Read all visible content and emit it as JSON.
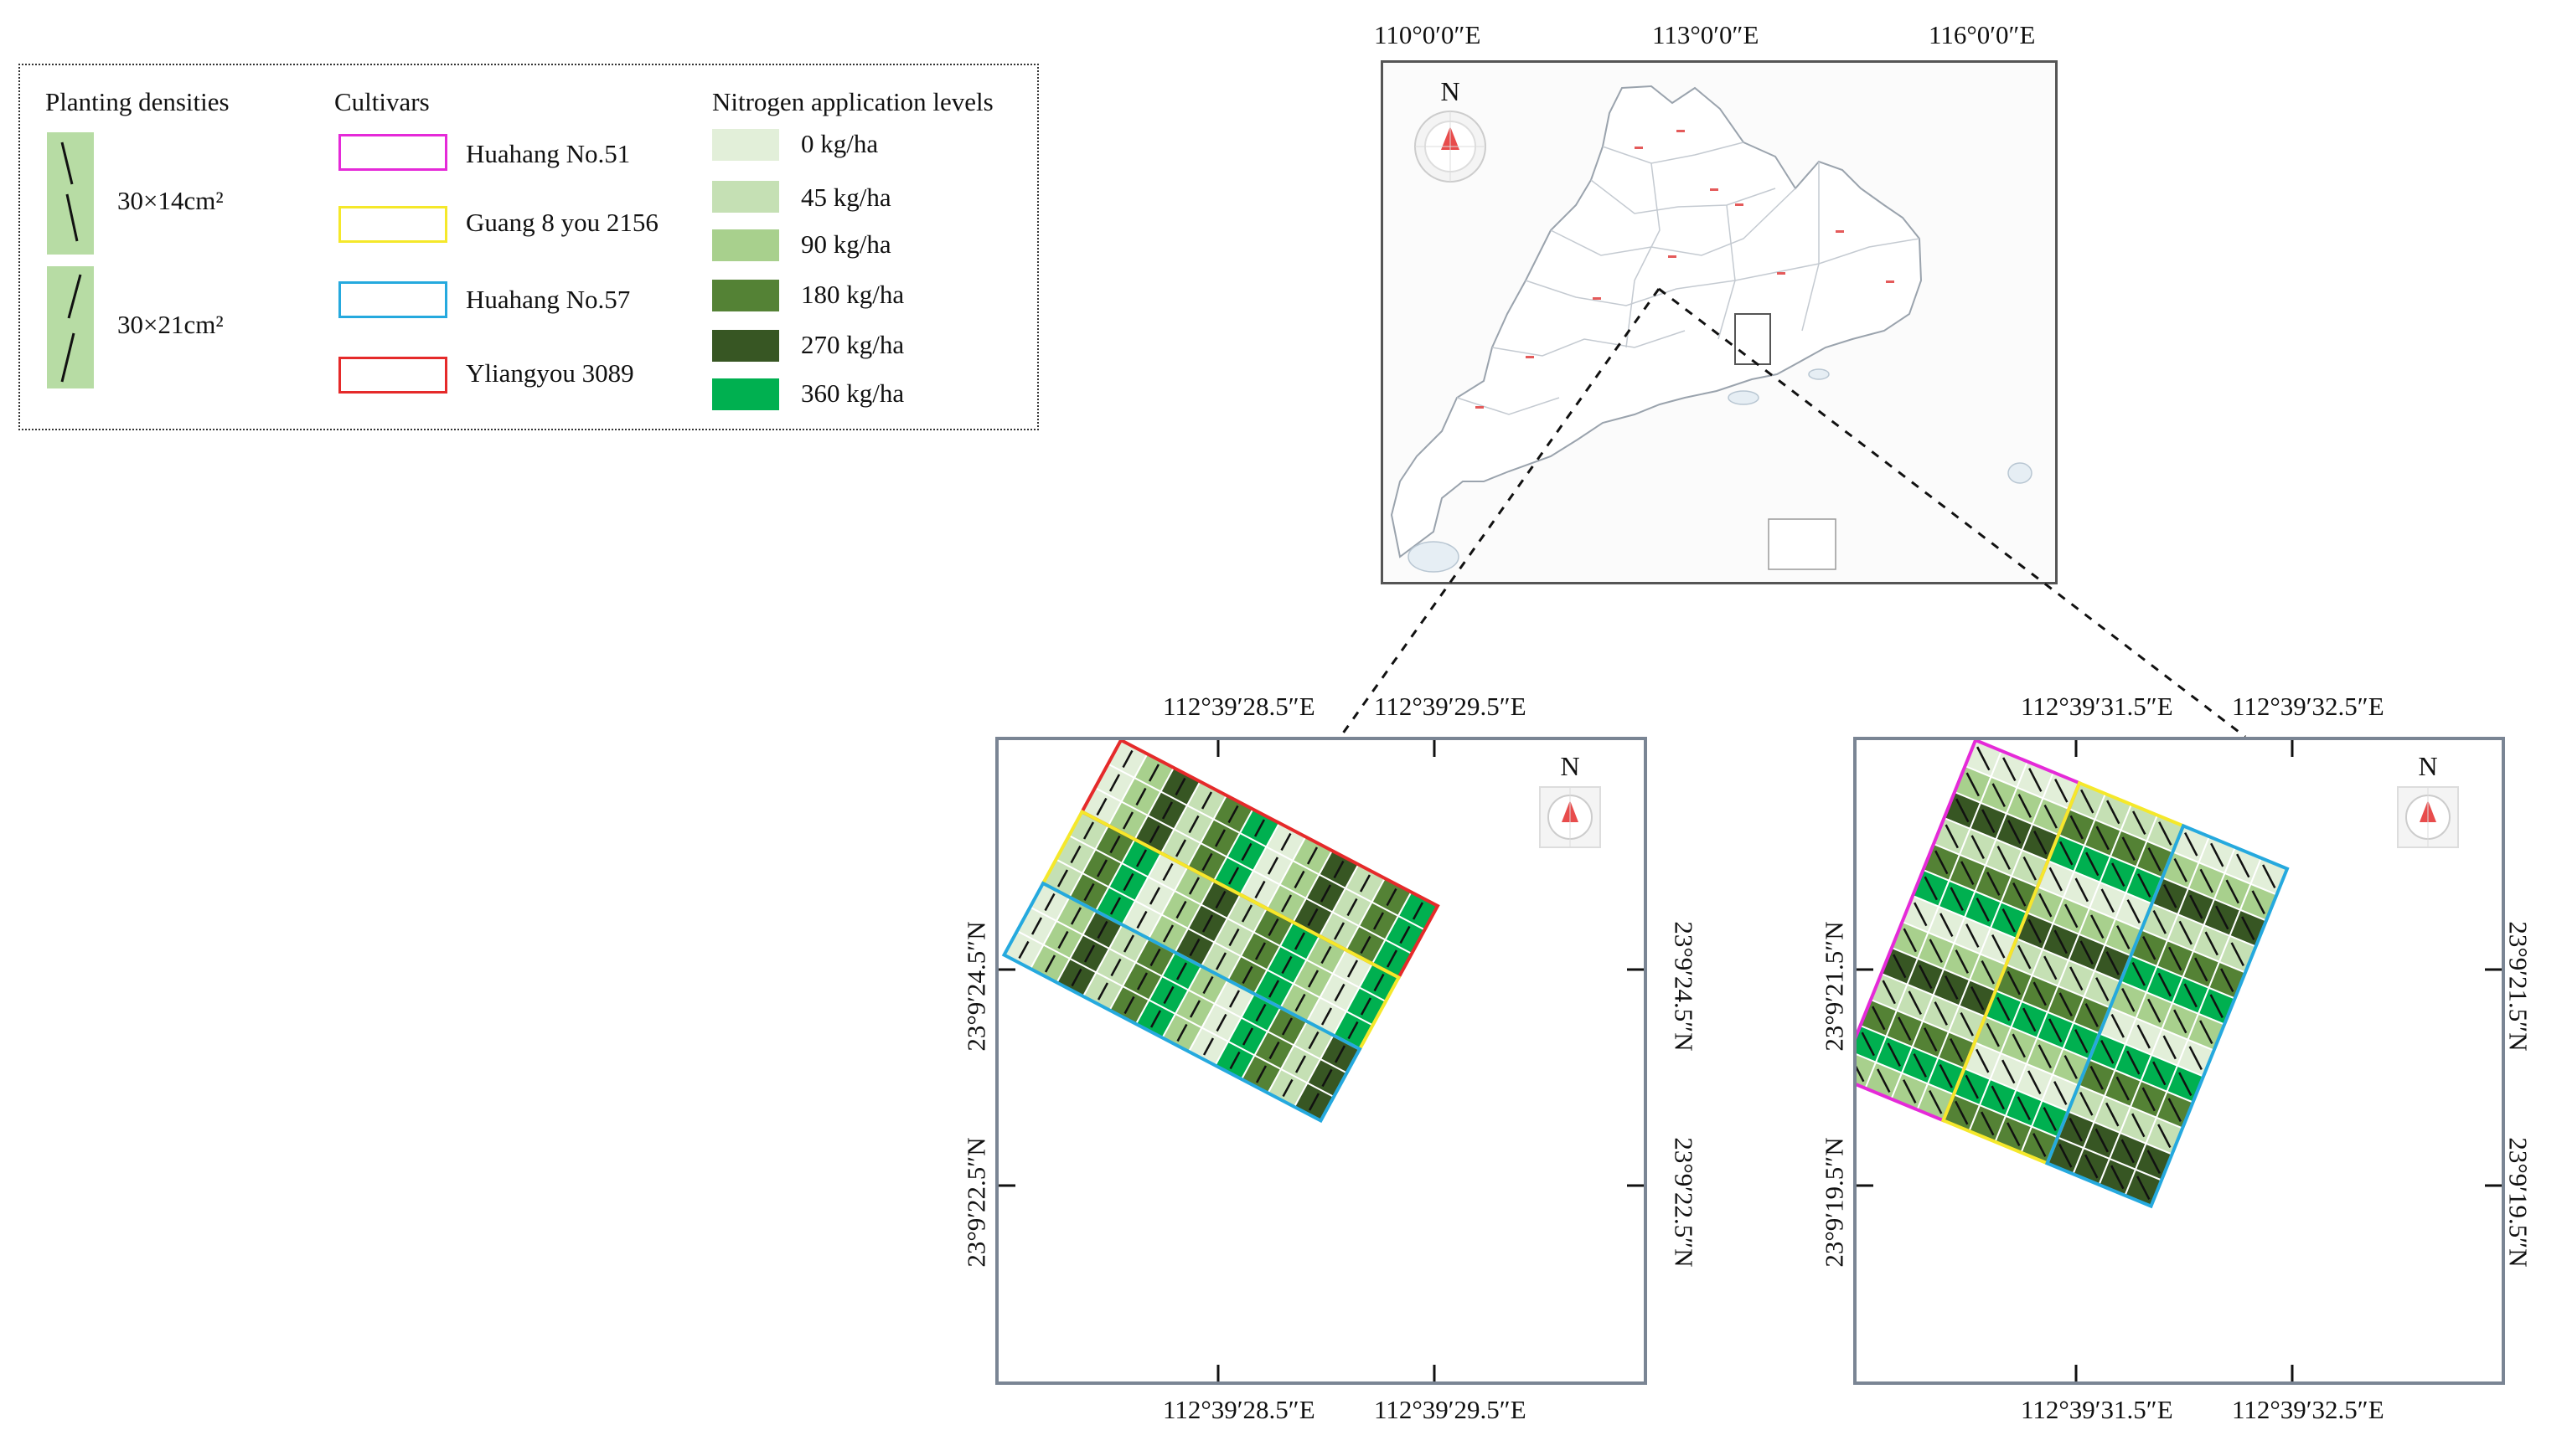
{
  "legend": {
    "planting_densities": {
      "title": "Planting densities",
      "items": [
        {
          "label": "30×14cm²"
        },
        {
          "label": "30×21cm²"
        }
      ]
    },
    "cultivars": {
      "title": "Cultivars",
      "items": [
        {
          "label": "Huahang No.51",
          "color": "#e52ad8"
        },
        {
          "label": "Guang 8 you 2156",
          "color": "#f5e82a"
        },
        {
          "label": "Huahang No.57",
          "color": "#25a9de"
        },
        {
          "label": "Yliangyou 3089",
          "color": "#e52a2a"
        }
      ]
    },
    "nitrogen": {
      "title": "Nitrogen application levels",
      "items": [
        {
          "label": "0 kg/ha",
          "color": "#e2efd9"
        },
        {
          "label": "45 kg/ha",
          "color": "#c5e0b4"
        },
        {
          "label": "90 kg/ha",
          "color": "#a8d08d"
        },
        {
          "label": "180 kg/ha",
          "color": "#548235"
        },
        {
          "label": "270 kg/ha",
          "color": "#375623"
        },
        {
          "label": "360 kg/ha",
          "color": "#00b050"
        }
      ]
    }
  },
  "overview_map": {
    "lon_labels": [
      "110°0′0″E",
      "113°0′0″E",
      "116°0′0″E"
    ],
    "north": "N"
  },
  "left_map": {
    "top_labels": [
      "112°39′28.5″E",
      "112°39′29.5″E"
    ],
    "bottom_labels": [
      "112°39′28.5″E",
      "112°39′29.5″E"
    ],
    "left_labels": [
      "23°9′24.5″N",
      "23°9′22.5″N"
    ],
    "right_labels": [
      "23°9′24.5″N",
      "23°9′22.5″N"
    ],
    "north": "N"
  },
  "right_map": {
    "top_labels": [
      "112°39′31.5″E",
      "112°39′32.5″E"
    ],
    "bottom_labels": [
      "112°39′31.5″E",
      "112°39′32.5″E"
    ],
    "left_labels": [
      "23°9′21.5″N",
      "23°9′19.5″N"
    ],
    "right_labels": [
      "23°9′21.5″N",
      "23°9′19.5″N"
    ],
    "north": "N"
  }
}
